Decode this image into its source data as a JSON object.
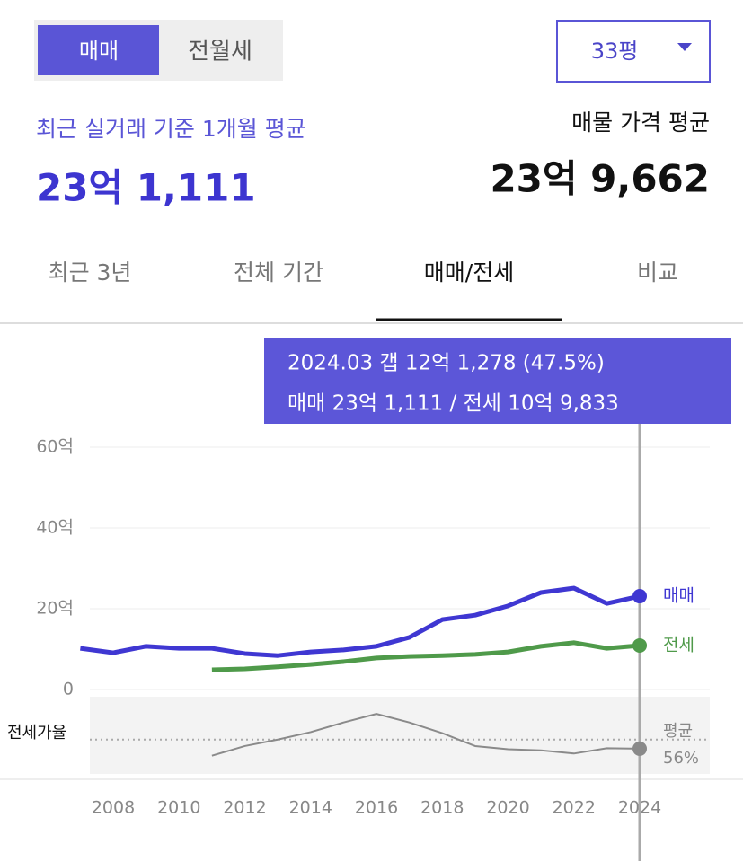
{
  "tabs": [
    "매매",
    "전월세"
  ],
  "size_select": "33평",
  "recent_label": "최근 실거래 기준 1개월 평균",
  "recent_value": "23억 1,111",
  "listing_label": "매물 가격 평균",
  "listing_value": "23억 9,662",
  "period_tabs": [
    "최근 3년",
    "전체 기간",
    "매매/전세",
    "비교"
  ],
  "tooltip": {
    "line1": "2024.03  갭 12억 1,278 (47.5%)",
    "line2": "매매 23억 1,111 / 전세 10억 9,833"
  },
  "chart_data": {
    "type": "line",
    "x": [
      2007,
      2008,
      2009,
      2010,
      2011,
      2012,
      2013,
      2014,
      2015,
      2016,
      2017,
      2018,
      2019,
      2020,
      2021,
      2022,
      2023,
      2024
    ],
    "xlim": [
      2006.4,
      2025.8
    ],
    "xticks": [
      2008,
      2010,
      2012,
      2014,
      2016,
      2018,
      2020,
      2022,
      2024
    ],
    "ylim": [
      0,
      60
    ],
    "yticks": [
      0,
      {
        "value": 20,
        "label": "20억"
      },
      {
        "value": 40,
        "label": "40억"
      },
      {
        "value": 60,
        "label": "60억"
      }
    ],
    "grid": true,
    "series": [
      {
        "name": "매매",
        "color": "#3f37d2",
        "values": [
          10.2,
          9.1,
          10.7,
          10.2,
          10.2,
          8.9,
          8.4,
          9.3,
          9.8,
          10.7,
          12.9,
          17.3,
          18.4,
          20.7,
          24,
          25.1,
          21.3,
          23.1
        ]
      },
      {
        "name": "전세",
        "color": "#4f9a4a",
        "values": [
          null,
          null,
          null,
          null,
          4.9,
          5.1,
          5.6,
          6.2,
          6.9,
          7.8,
          8.2,
          8.4,
          8.7,
          9.3,
          10.7,
          11.6,
          10.2,
          10.9
        ]
      }
    ],
    "ratio": {
      "name": "전세가율",
      "color": "#8a8a8a",
      "ylim": [
        24,
        96
      ],
      "values": [
        null,
        null,
        null,
        null,
        41,
        50,
        56,
        63,
        72,
        80,
        72,
        62,
        50,
        47,
        46,
        43,
        48,
        47.5
      ],
      "average_name": "평균",
      "average": 56,
      "average_label": "56%"
    }
  }
}
